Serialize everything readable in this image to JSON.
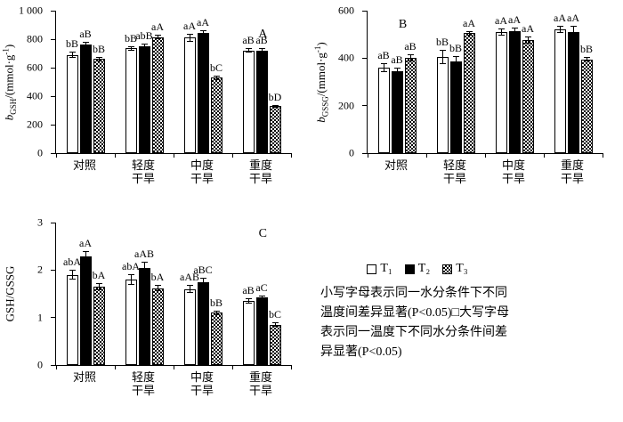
{
  "figure": {
    "background": "#ffffff",
    "ink": "#000000"
  },
  "legend": {
    "items": [
      {
        "label": "T₁",
        "fill": "white"
      },
      {
        "label": "T₂",
        "fill": "black"
      },
      {
        "label": "T₃",
        "fill": "checker"
      }
    ],
    "note": "小写字母表示同一水分条件下不同温度间差异显著(P<0.05)□大写字母表示同一温度下不同水分条件间差异显著(P<0.05)"
  },
  "chart_data": [
    {
      "type": "bar",
      "panel_label": "A",
      "panel_label_x": 0.88,
      "panel_label_y": 0.12,
      "ylabel_segments": [
        {
          "t": "b",
          "style": "italic"
        },
        {
          "t": "GSH",
          "style": "sub"
        },
        {
          "t": "/(mmol·g",
          "style": ""
        },
        {
          "t": "-1",
          "style": "sup"
        },
        {
          "t": ")",
          "style": ""
        }
      ],
      "ylim": [
        0,
        1000
      ],
      "ytick_labels": [
        "0",
        "200",
        "400",
        "600",
        "800",
        "1 000"
      ],
      "categories": [
        "对照",
        "轻度\n干旱",
        "中度\n干旱",
        "重度\n干旱"
      ],
      "series": [
        {
          "name": "T₁",
          "fill": "white",
          "values": [
            690,
            735,
            810,
            720
          ],
          "errors": [
            20,
            15,
            30,
            15
          ],
          "sig": [
            "bB",
            "bB",
            "aA",
            "aB"
          ]
        },
        {
          "name": "T₂",
          "fill": "black",
          "values": [
            760,
            750,
            845,
            720
          ],
          "errors": [
            20,
            20,
            15,
            15
          ],
          "sig": [
            "aB",
            "abB",
            "aA",
            "aB"
          ]
        },
        {
          "name": "T₃",
          "fill": "checker",
          "values": [
            660,
            815,
            530,
            330
          ],
          "errors": [
            15,
            15,
            15,
            10
          ],
          "sig": [
            "bB",
            "aA",
            "bC",
            "bD"
          ]
        }
      ]
    },
    {
      "type": "bar",
      "panel_label": "B",
      "panel_label_x": 0.15,
      "panel_label_y": 0.05,
      "ylabel_segments": [
        {
          "t": "b",
          "style": "italic"
        },
        {
          "t": "GSSG",
          "style": "sub"
        },
        {
          "t": "/(mmol·g",
          "style": ""
        },
        {
          "t": "-1",
          "style": "sup"
        },
        {
          "t": ")",
          "style": ""
        }
      ],
      "ylim": [
        0,
        600
      ],
      "ytick_labels": [
        "0",
        "200",
        "400",
        "600"
      ],
      "categories": [
        "对照",
        "轻度\n干旱",
        "中度\n干旱",
        "重度\n干旱"
      ],
      "series": [
        {
          "name": "T₁",
          "fill": "white",
          "values": [
            360,
            405,
            510,
            520
          ],
          "errors": [
            20,
            30,
            15,
            15
          ],
          "sig": [
            "aB",
            "bB",
            "aA",
            "aA"
          ]
        },
        {
          "name": "T₂",
          "fill": "black",
          "values": [
            345,
            385,
            515,
            510
          ],
          "errors": [
            15,
            25,
            15,
            25
          ],
          "sig": [
            "aB",
            "bB",
            "aA",
            "aA"
          ]
        },
        {
          "name": "T₃",
          "fill": "checker",
          "values": [
            400,
            505,
            475,
            395
          ],
          "errors": [
            15,
            10,
            15,
            10
          ],
          "sig": [
            "aB",
            "aA",
            "aA",
            "bB"
          ]
        }
      ]
    },
    {
      "type": "bar",
      "panel_label": "C",
      "panel_label_x": 0.88,
      "panel_label_y": 0.03,
      "ylabel_segments": [
        {
          "t": "GSH/GSSG",
          "style": ""
        }
      ],
      "ylim": [
        0,
        3
      ],
      "ytick_labels": [
        "0",
        "1",
        "2",
        "3"
      ],
      "categories": [
        "对照",
        "轻度\n干旱",
        "中度\n干旱",
        "重度\n干旱"
      ],
      "series": [
        {
          "name": "T₁",
          "fill": "white",
          "values": [
            1.9,
            1.8,
            1.6,
            1.35
          ],
          "errors": [
            0.1,
            0.12,
            0.08,
            0.05
          ],
          "sig": [
            "abA",
            "abA",
            "aAB",
            "aB"
          ]
        },
        {
          "name": "T₂",
          "fill": "black",
          "values": [
            2.28,
            2.05,
            1.75,
            1.42
          ],
          "errors": [
            0.12,
            0.12,
            0.08,
            0.05
          ],
          "sig": [
            "aA",
            "aAB",
            "aBC",
            "aC"
          ]
        },
        {
          "name": "T₃",
          "fill": "checker",
          "values": [
            1.65,
            1.62,
            1.1,
            0.85
          ],
          "errors": [
            0.07,
            0.06,
            0.05,
            0.05
          ],
          "sig": [
            "bA",
            "bA",
            "bB",
            "bC"
          ]
        }
      ]
    }
  ]
}
